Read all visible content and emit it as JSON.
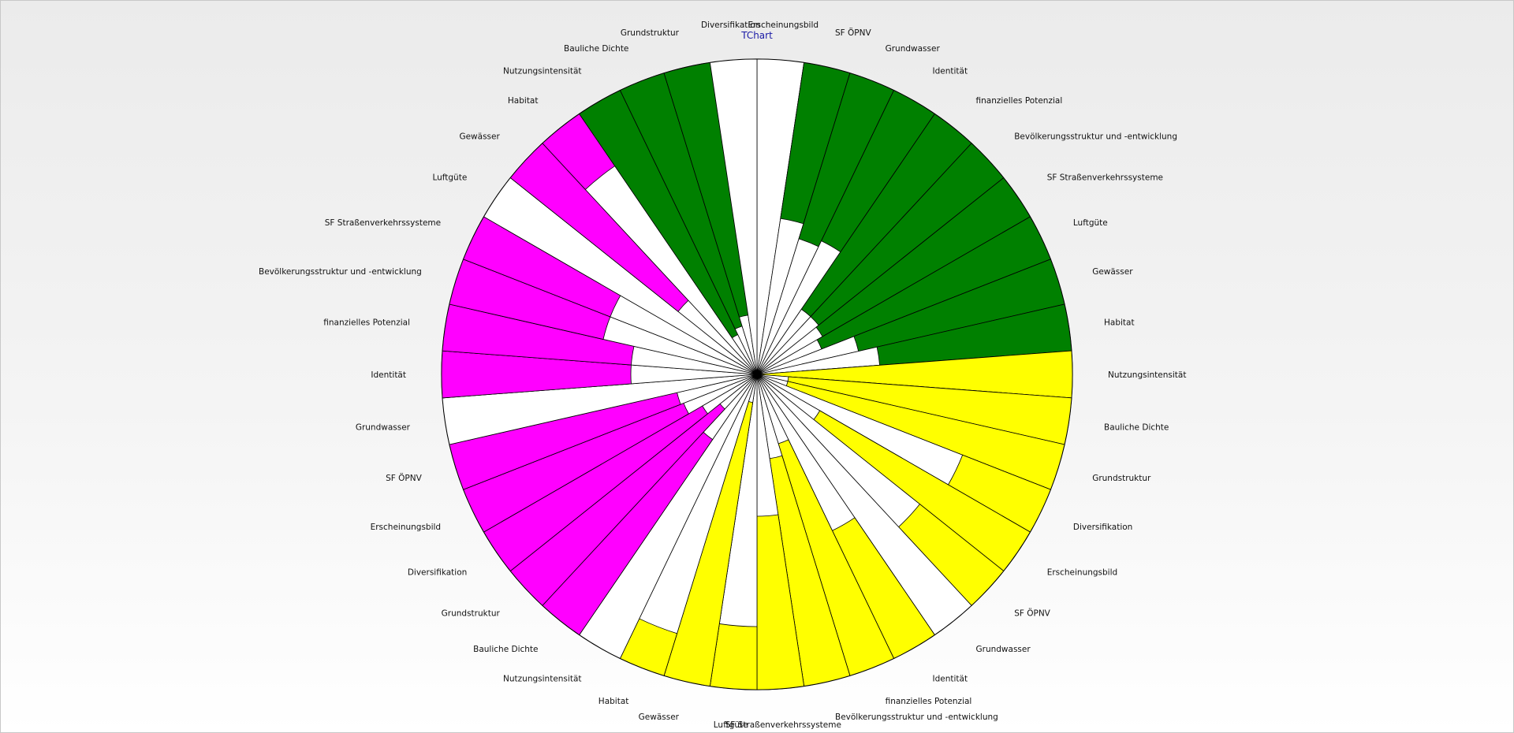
{
  "chart_data": {
    "type": "polar-bar",
    "title": "TChart",
    "max_value": 1,
    "start": "top",
    "direction": "clockwise",
    "grid": false,
    "colors": {
      "green": "#008000",
      "yellow": "#ffff00",
      "magenta": "#ff00ff",
      "white": "#ffffff",
      "outline": "#000000",
      "title": "#1a1aa6"
    },
    "sectors": [
      {
        "label": "Erscheinungsbild",
        "value": 0.0,
        "color": "green"
      },
      {
        "label": "SF ÖPNV",
        "value": 0.5,
        "color": "green"
      },
      {
        "label": "Grundwasser",
        "value": 0.55,
        "color": "green"
      },
      {
        "label": "Identität",
        "value": 0.53,
        "color": "green"
      },
      {
        "label": "finanzielles Potenzial",
        "value": 0.75,
        "color": "green"
      },
      {
        "label": "Bevölkerungsstruktur und -entwicklung",
        "value": 0.75,
        "color": "green"
      },
      {
        "label": "SF Straßenverkehrssysteme",
        "value": 0.76,
        "color": "green"
      },
      {
        "label": "Luftgüte",
        "value": 0.78,
        "color": "green"
      },
      {
        "label": "Gewässer",
        "value": 0.67,
        "color": "green"
      },
      {
        "label": "Habitat",
        "value": 0.61,
        "color": "green"
      },
      {
        "label": "Nutzungsintensität",
        "value": 1.0,
        "color": "yellow"
      },
      {
        "label": "Bauliche Dichte",
        "value": 0.9,
        "color": "yellow"
      },
      {
        "label": "Grundstruktur",
        "value": 0.9,
        "color": "yellow"
      },
      {
        "label": "Diversifikation",
        "value": 0.3,
        "color": "yellow"
      },
      {
        "label": "Erscheinungsbild",
        "value": 0.77,
        "color": "yellow"
      },
      {
        "label": "SF ÖPNV",
        "value": 0.34,
        "color": "yellow"
      },
      {
        "label": "Grundwasser",
        "value": 0.0,
        "color": "yellow"
      },
      {
        "label": "Identität",
        "value": 0.45,
        "color": "yellow"
      },
      {
        "label": "finanzielles Potenzial",
        "value": 0.77,
        "color": "yellow"
      },
      {
        "label": "Bevölkerungsstruktur und -entwicklung",
        "value": 0.73,
        "color": "yellow"
      },
      {
        "label": "SF Straßenverkehrssysteme",
        "value": 0.55,
        "color": "yellow"
      },
      {
        "label": "Luftgüte",
        "value": 0.2,
        "color": "yellow"
      },
      {
        "label": "Gewässer",
        "value": 0.91,
        "color": "yellow"
      },
      {
        "label": "Habitat",
        "value": 0.14,
        "color": "yellow"
      },
      {
        "label": "Nutzungsintensität",
        "value": 0.0,
        "color": "magenta"
      },
      {
        "label": "Bauliche Dichte",
        "value": 0.75,
        "color": "magenta"
      },
      {
        "label": "Grundstruktur",
        "value": 0.85,
        "color": "magenta"
      },
      {
        "label": "Diversifikation",
        "value": 0.8,
        "color": "magenta"
      },
      {
        "label": "Erscheinungsbild",
        "value": 0.75,
        "color": "magenta"
      },
      {
        "label": "SF ÖPNV",
        "value": 0.74,
        "color": "magenta"
      },
      {
        "label": "Grundwasser",
        "value": 0.0,
        "color": "magenta"
      },
      {
        "label": "Identität",
        "value": 0.6,
        "color": "magenta"
      },
      {
        "label": "finanzielles Potenzial",
        "value": 0.6,
        "color": "magenta"
      },
      {
        "label": "Bevölkerungsstruktur und -entwicklung",
        "value": 0.5,
        "color": "magenta"
      },
      {
        "label": "SF Straßenverkehrssysteme",
        "value": 0.5,
        "color": "magenta"
      },
      {
        "label": "Luftgüte",
        "value": 0.0,
        "color": "magenta"
      },
      {
        "label": "Gewässer",
        "value": 0.68,
        "color": "magenta"
      },
      {
        "label": "Habitat",
        "value": 0.2,
        "color": "magenta"
      },
      {
        "label": "Nutzungsintensität",
        "value": 0.86,
        "color": "green"
      },
      {
        "label": "Bauliche Dichte",
        "value": 0.84,
        "color": "green"
      },
      {
        "label": "Grundstruktur",
        "value": 0.81,
        "color": "green"
      },
      {
        "label": "Diversifikation",
        "value": 0.0,
        "color": "green"
      }
    ]
  }
}
